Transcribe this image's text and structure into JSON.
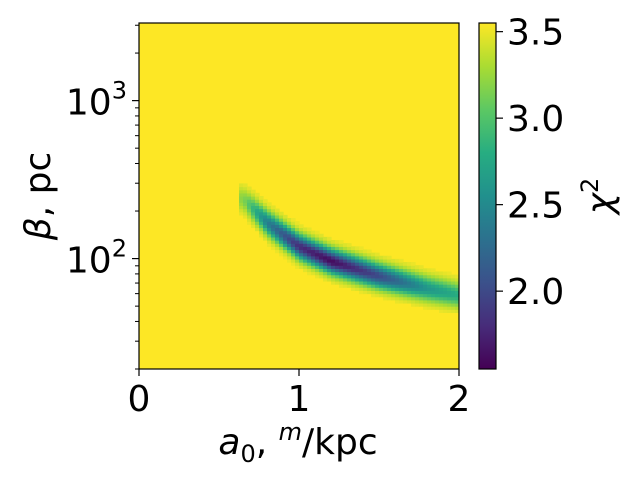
{
  "chart_data": {
    "type": "heatmap",
    "title": "",
    "x_axis": {
      "label_main": "a",
      "label_sub": "0",
      "label_mid": ", ",
      "label_sup": "m",
      "label_tail": "/kpc",
      "range": [
        0,
        2
      ],
      "scale": "linear",
      "ticks": [
        0,
        1,
        2
      ],
      "tick_labels": [
        "0",
        "1",
        "2"
      ]
    },
    "y_axis": {
      "label_main": "β",
      "label_tail": ", pc",
      "range": [
        20,
        3100
      ],
      "scale": "log",
      "major_ticks": [
        {
          "value": 100,
          "base": "10",
          "exp": "2"
        },
        {
          "value": 1000,
          "base": "10",
          "exp": "3"
        }
      ],
      "minor_ticks": [
        20,
        30,
        40,
        50,
        60,
        70,
        80,
        90,
        200,
        300,
        400,
        500,
        600,
        700,
        800,
        900,
        2000,
        3000
      ]
    },
    "colorbar": {
      "label_main": "χ",
      "label_sup": "2",
      "range": [
        1.55,
        3.55
      ],
      "ticks": [
        2.0,
        2.5,
        3.0,
        3.5
      ],
      "tick_labels": [
        "2.0",
        "2.5",
        "3.0",
        "3.5"
      ],
      "colormap": "viridis"
    },
    "background_value": 3.55,
    "valley": {
      "description_points": [
        {
          "a0": 0.65,
          "beta": 240,
          "chi2": 3.2
        },
        {
          "a0": 0.8,
          "beta": 170,
          "chi2": 2.4
        },
        {
          "a0": 1.0,
          "beta": 120,
          "chi2": 1.8
        },
        {
          "a0": 1.2,
          "beta": 97,
          "chi2": 1.6
        },
        {
          "a0": 1.5,
          "beta": 78,
          "chi2": 2.0
        },
        {
          "a0": 1.8,
          "beta": 65,
          "chi2": 2.6
        },
        {
          "a0": 2.0,
          "beta": 59,
          "chi2": 2.8
        }
      ]
    }
  }
}
